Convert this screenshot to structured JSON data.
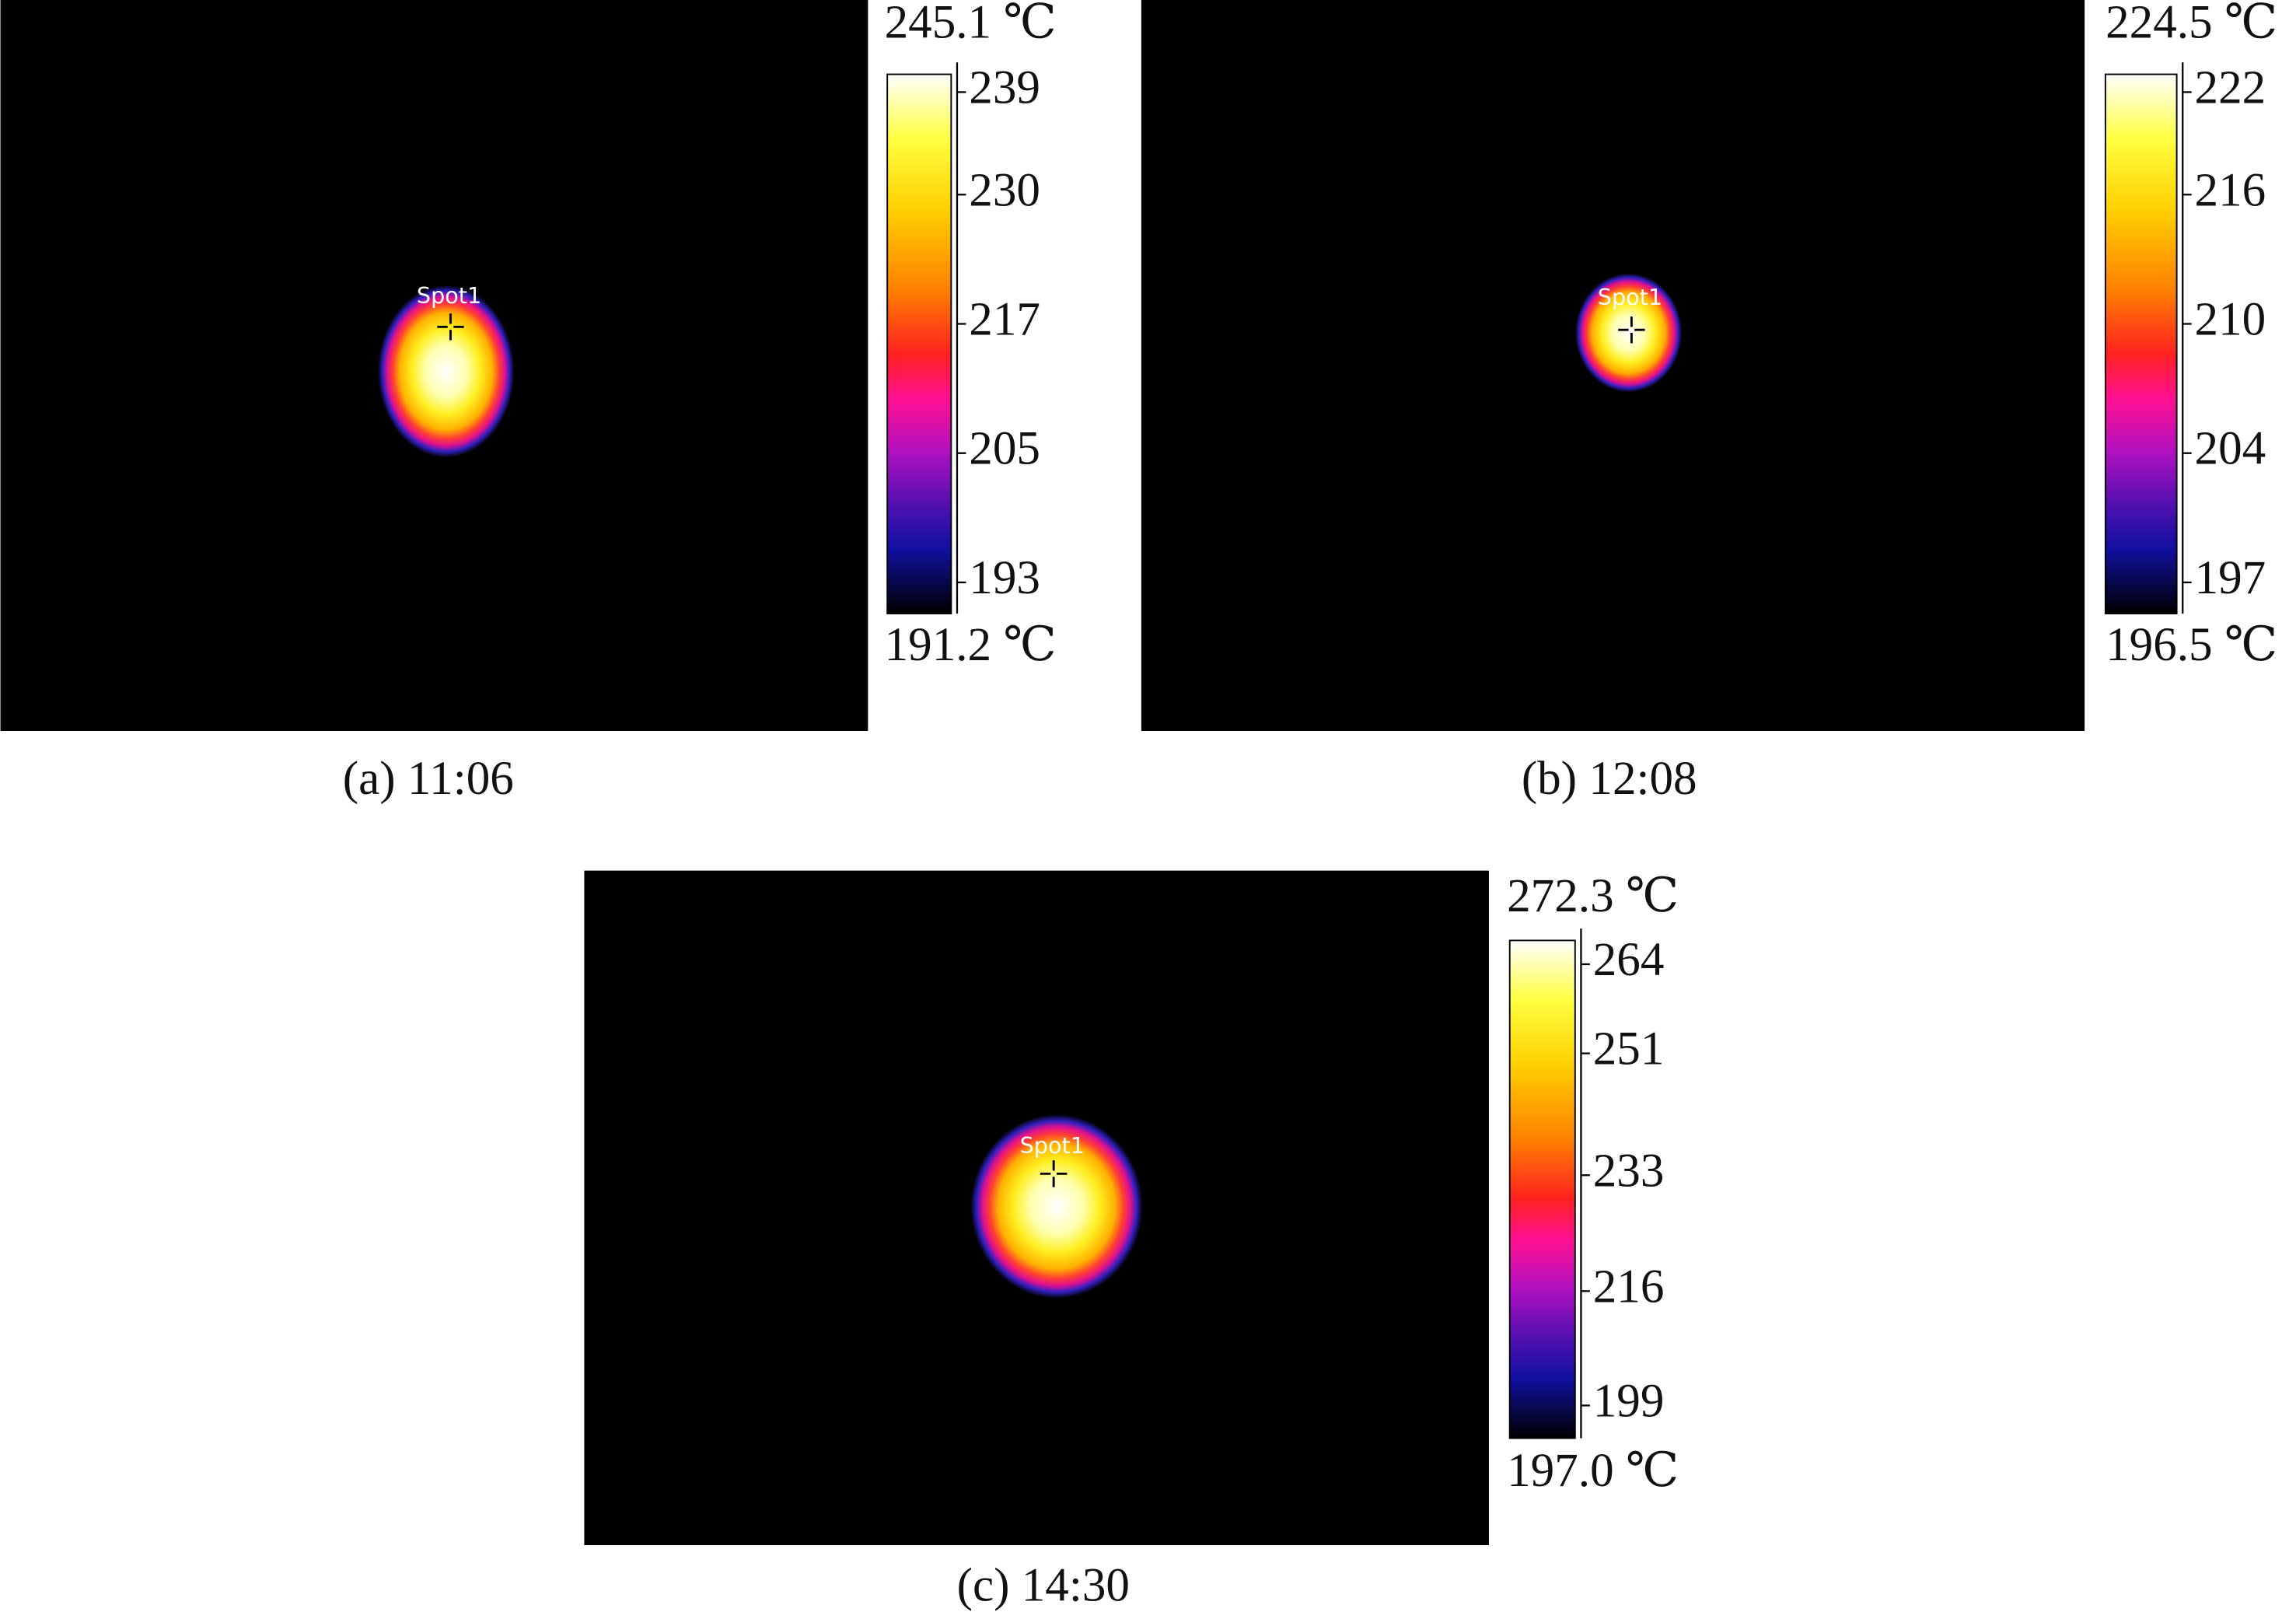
{
  "panels": [
    {
      "caption": "(a) 11:06",
      "spot_label": "Spot1",
      "max_label": "245.1 ℃",
      "min_label": "191.2 ℃",
      "ticks": [
        239,
        230,
        217,
        205,
        193
      ]
    },
    {
      "caption": "(b) 12:08",
      "spot_label": "Spot1",
      "max_label": "224.5 ℃",
      "min_label": "196.5 ℃",
      "ticks": [
        222,
        216,
        210,
        204,
        197
      ]
    },
    {
      "caption": "(c) 14:30",
      "spot_label": "Spot1",
      "max_label": "272.3 ℃",
      "min_label": "197.0 ℃",
      "ticks": [
        264,
        251,
        233,
        216,
        199
      ]
    }
  ]
}
